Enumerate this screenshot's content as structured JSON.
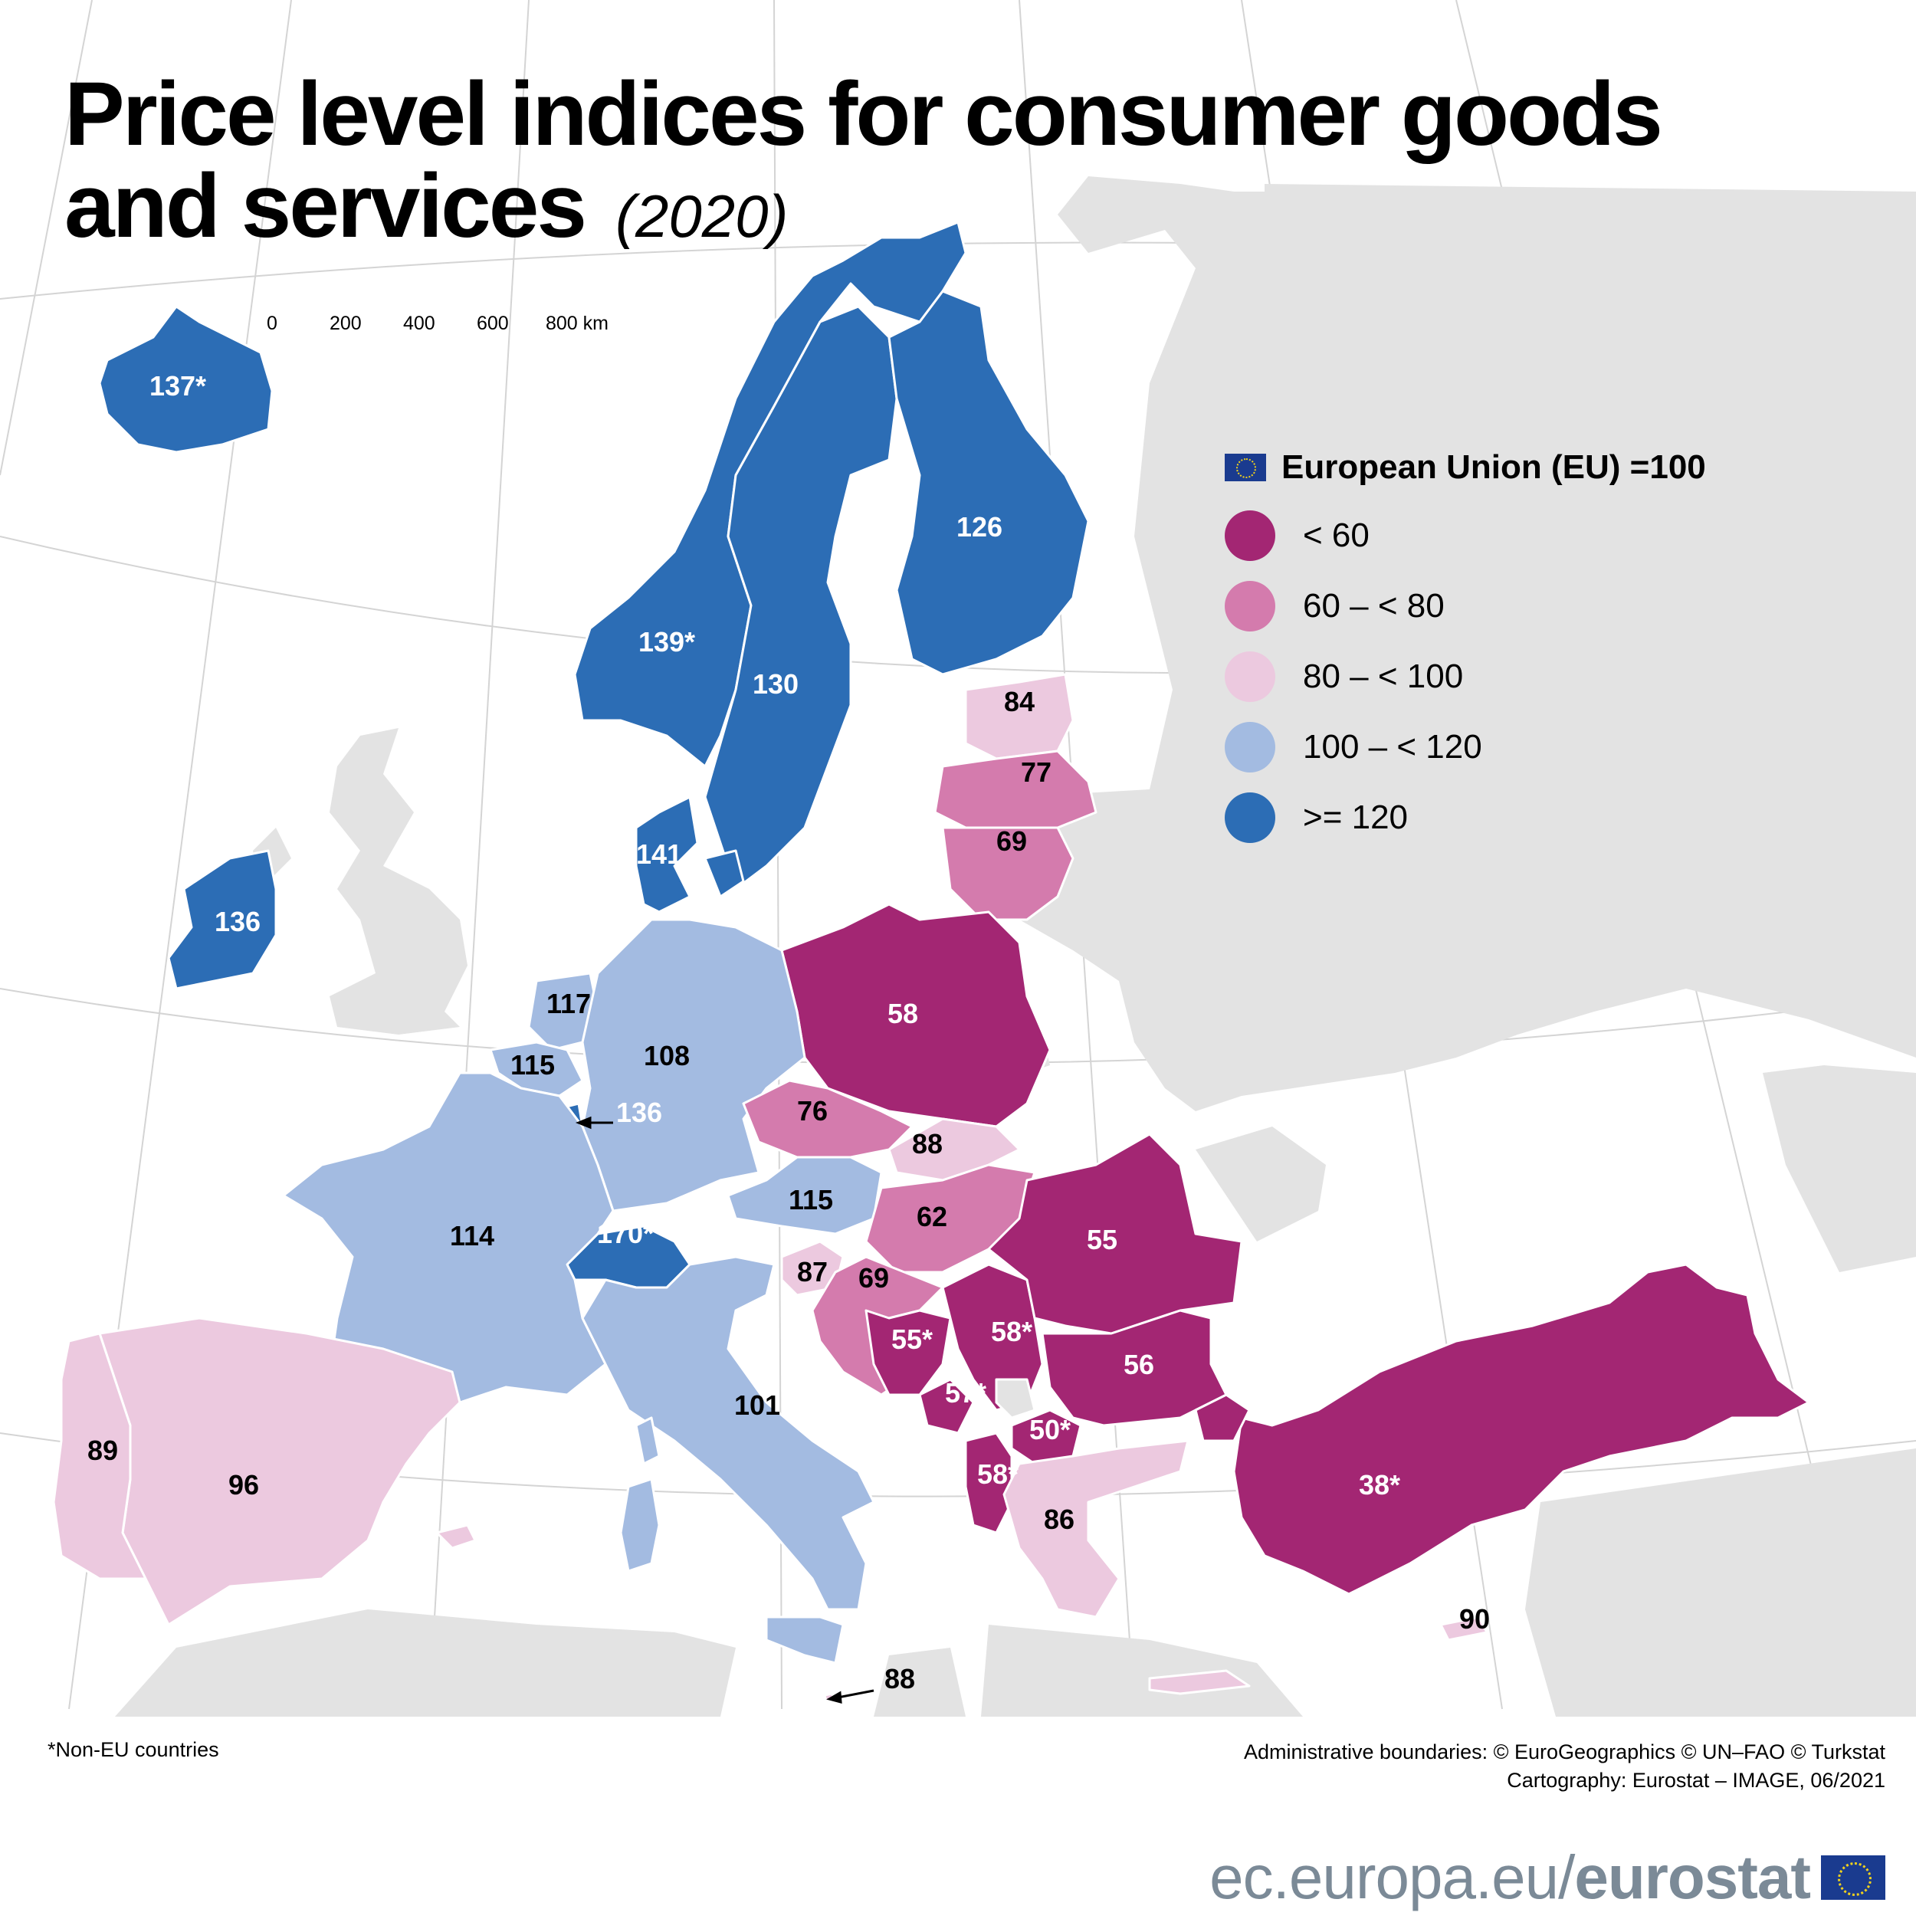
{
  "title": {
    "line1": "Price level indices for consumer goods",
    "line2": "and services",
    "year": "(2020)"
  },
  "scale_bar": {
    "labels": [
      "0",
      "200",
      "400",
      "600",
      "800 km"
    ]
  },
  "legend": {
    "title": "European Union (EU) =100",
    "classes": [
      {
        "label": "< 60",
        "color": "#a32673"
      },
      {
        "label": "60 – < 80",
        "color": "#d47bad"
      },
      {
        "label": "80 – < 100",
        "color": "#ecc9df"
      },
      {
        "label": "100 – < 120",
        "color": "#a3bbe1"
      },
      {
        "label": ">= 120",
        "color": "#2c6db5"
      }
    ]
  },
  "colors": {
    "sea": "#ffffff",
    "land_background": "#e3e3e3",
    "graticule": "#cfcfcf",
    "border": "#ffffff"
  },
  "chart_data": {
    "type": "choropleth",
    "reference": "European Union (EU) =100",
    "regions": [
      {
        "label": "137*",
        "value": 137,
        "non_eu": true
      },
      {
        "label": "139*",
        "value": 139,
        "non_eu": true
      },
      {
        "label": "130",
        "value": 130
      },
      {
        "label": "126",
        "value": 126
      },
      {
        "label": "84",
        "value": 84
      },
      {
        "label": "77",
        "value": 77
      },
      {
        "label": "69",
        "value": 69
      },
      {
        "label": "141",
        "value": 141
      },
      {
        "label": "136",
        "value": 136
      },
      {
        "label": "58",
        "value": 58
      },
      {
        "label": "117",
        "value": 117
      },
      {
        "label": "108",
        "value": 108
      },
      {
        "label": "115",
        "value": 115
      },
      {
        "label": "136",
        "value": 136
      },
      {
        "label": "76",
        "value": 76
      },
      {
        "label": "88",
        "value": 88
      },
      {
        "label": "114",
        "value": 114
      },
      {
        "label": "170*",
        "value": 170,
        "non_eu": true
      },
      {
        "label": "115",
        "value": 115
      },
      {
        "label": "62",
        "value": 62
      },
      {
        "label": "55",
        "value": 55
      },
      {
        "label": "87",
        "value": 87
      },
      {
        "label": "69",
        "value": 69
      },
      {
        "label": "55*",
        "value": 55,
        "non_eu": true
      },
      {
        "label": "58*",
        "value": 58,
        "non_eu": true
      },
      {
        "label": "56",
        "value": 56
      },
      {
        "label": "57*",
        "value": 57,
        "non_eu": true
      },
      {
        "label": "50*",
        "value": 50,
        "non_eu": true
      },
      {
        "label": "58*",
        "value": 58,
        "non_eu": true
      },
      {
        "label": "86",
        "value": 86
      },
      {
        "label": "38*",
        "value": 38,
        "non_eu": true
      },
      {
        "label": "90",
        "value": 90
      },
      {
        "label": "89",
        "value": 89
      },
      {
        "label": "96",
        "value": 96
      },
      {
        "label": "101",
        "value": 101
      },
      {
        "label": "88",
        "value": 88
      }
    ]
  },
  "footnote": "*Non-EU countries",
  "credits": {
    "line1": "Administrative boundaries: © EuroGeographics © UN–FAO © Turkstat",
    "line2": "Cartography: Eurostat – IMAGE, 06/2021"
  },
  "brand": {
    "prefix": "ec.europa.eu/",
    "name": "eurostat"
  }
}
